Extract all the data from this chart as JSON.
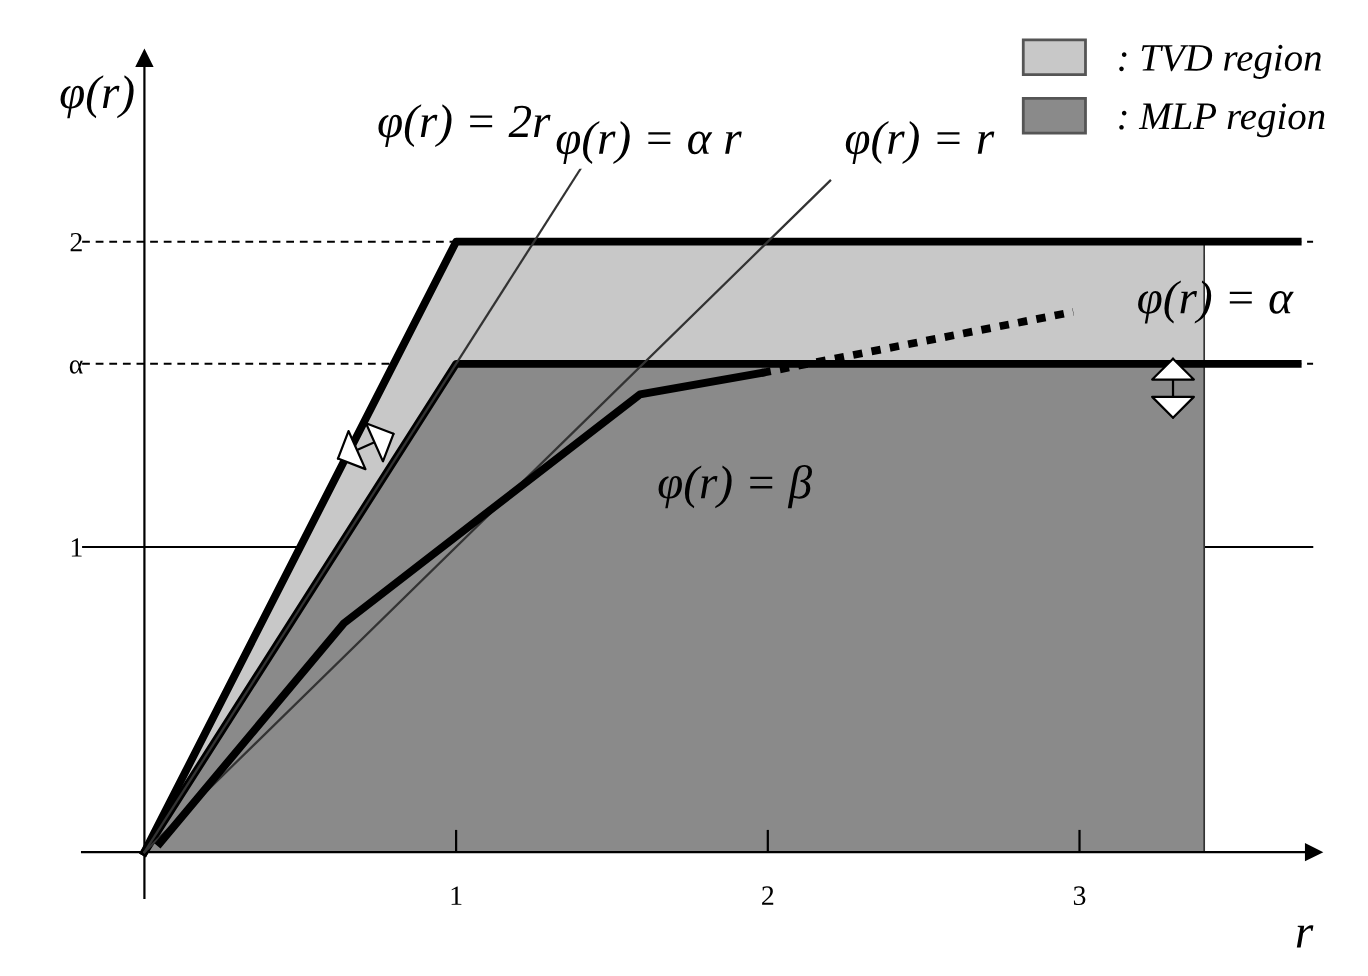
{
  "chart_data": {
    "type": "line",
    "xlabel": "r",
    "ylabel": "φ(r)",
    "xlim": [
      -0.2,
      3.75
    ],
    "ylim": [
      -0.15,
      2.6
    ],
    "xticks": [
      1,
      2,
      3
    ],
    "yticks": [
      1,
      {
        "value": 1.6,
        "label": "α"
      },
      2
    ],
    "grid": false,
    "legend": "top right",
    "ref_lines": [
      {
        "axis": "y",
        "value": 2,
        "line_style": "dashed",
        "color": "#000000"
      },
      {
        "axis": "y",
        "value": 1.6,
        "line_style": "dashed",
        "color": "#000000"
      },
      {
        "axis": "y",
        "value": 1,
        "line_style": "solid",
        "color": "#000000"
      }
    ],
    "series": [
      {
        "type": "area",
        "name": ": TVD region",
        "color": "#c8c8c8",
        "x": [
          0,
          1,
          3.4
        ],
        "values": [
          0,
          2,
          2
        ]
      },
      {
        "type": "area",
        "name": ": MLP region",
        "color": "#8a8a8a",
        "x": [
          0,
          1,
          3.4
        ],
        "values": [
          0,
          1.6,
          1.6
        ]
      },
      {
        "color": "#000000",
        "line_style": "solid",
        "x": [
          0,
          1,
          3.7
        ],
        "values": [
          0,
          2,
          2
        ]
      },
      {
        "color": "#000000",
        "line_style": "solid",
        "x": [
          0,
          1,
          3.7
        ],
        "values": [
          0,
          1.6,
          1.6
        ]
      },
      {
        "color": "#333333",
        "line_style": "solid",
        "x": [
          0,
          2.2
        ],
        "values": [
          0,
          2.2
        ]
      },
      {
        "color": "#333333",
        "line_style": "solid",
        "x": [
          0,
          1.4
        ],
        "values": [
          0,
          2.24
        ]
      },
      {
        "color": "#000000",
        "line_style": "solid",
        "x": [
          0.05,
          0.64,
          1.59,
          1.98
        ],
        "values": [
          0.03,
          0.75,
          1.5,
          1.57
        ]
      },
      {
        "color": "#000000",
        "line_style": "dotted",
        "x": [
          1.98,
          2.98
        ],
        "values": [
          1.57,
          1.77
        ]
      }
    ],
    "annotations": [
      "φ(r) = 2r",
      "φ(r) = α r",
      "φ(r) = r",
      "φ(r) = α",
      "φ(r) = β"
    ]
  }
}
